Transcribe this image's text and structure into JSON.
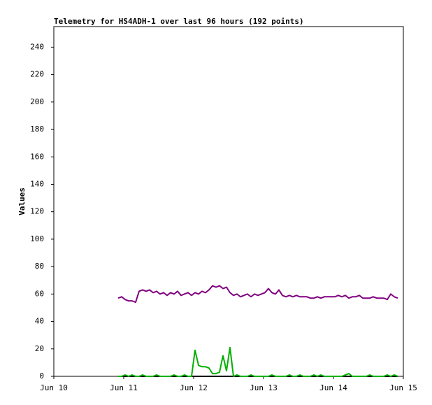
{
  "chart_data": {
    "type": "line",
    "title": "Telemetry for HS4ADH-1 over last 96 hours (192 points)",
    "y_label": "Values",
    "xlim": [
      10,
      15
    ],
    "xticks": [
      {
        "value": 10,
        "label": "Jun 10"
      },
      {
        "value": 11,
        "label": "Jun 11"
      },
      {
        "value": 12,
        "label": "Jun 12"
      },
      {
        "value": 13,
        "label": "Jun 13"
      },
      {
        "value": 14,
        "label": "Jun 14"
      },
      {
        "value": 15,
        "label": "Jun 15"
      }
    ],
    "ylim": [
      0,
      255
    ],
    "yticks": [
      0,
      20,
      40,
      60,
      80,
      100,
      120,
      140,
      160,
      180,
      200,
      220,
      240
    ],
    "x": [
      10.92,
      10.97,
      11.02,
      11.07,
      11.12,
      11.17,
      11.22,
      11.27,
      11.32,
      11.37,
      11.42,
      11.47,
      11.52,
      11.57,
      11.62,
      11.67,
      11.72,
      11.77,
      11.82,
      11.87,
      11.92,
      11.97,
      12.02,
      12.07,
      12.12,
      12.17,
      12.22,
      12.27,
      12.32,
      12.37,
      12.42,
      12.47,
      12.52,
      12.57,
      12.62,
      12.67,
      12.72,
      12.77,
      12.82,
      12.87,
      12.92,
      12.97,
      13.02,
      13.07,
      13.12,
      13.17,
      13.22,
      13.27,
      13.32,
      13.37,
      13.42,
      13.47,
      13.52,
      13.57,
      13.62,
      13.67,
      13.72,
      13.77,
      13.82,
      13.87,
      13.92,
      13.97,
      14.02,
      14.07,
      14.12,
      14.17,
      14.22,
      14.27,
      14.32,
      14.37,
      14.42,
      14.47,
      14.52,
      14.57,
      14.62,
      14.67,
      14.72,
      14.77,
      14.82,
      14.87,
      14.92
    ],
    "series": [
      {
        "color": "#000000",
        "values": [
          0,
          0,
          0,
          0,
          0,
          0,
          0,
          0,
          0,
          0,
          0,
          0,
          0,
          0,
          0,
          0,
          0,
          0,
          0,
          0,
          0,
          0,
          0,
          0,
          0,
          0,
          0,
          0,
          0,
          0,
          0,
          0,
          0,
          0,
          0,
          0,
          0,
          0,
          0,
          0,
          0,
          0,
          0,
          0,
          0,
          0,
          0,
          0,
          0,
          0,
          0,
          0,
          0,
          0,
          0,
          0,
          0,
          0,
          0,
          0,
          0,
          0,
          0,
          0,
          0,
          0,
          0,
          0,
          0,
          0,
          0,
          0,
          0,
          0,
          0,
          0,
          0,
          0,
          0,
          0,
          0
        ]
      },
      {
        "color": "#00b000",
        "values": [
          0,
          0,
          1,
          0,
          1,
          0,
          0,
          1,
          0,
          0,
          0,
          1,
          0,
          0,
          0,
          0,
          1,
          0,
          0,
          1,
          0,
          0,
          19,
          8,
          7,
          7,
          6,
          2,
          2,
          3,
          15,
          4,
          21,
          0,
          1,
          0,
          0,
          0,
          1,
          0,
          0,
          0,
          0,
          0,
          1,
          0,
          0,
          0,
          0,
          1,
          0,
          0,
          1,
          0,
          0,
          0,
          1,
          0,
          1,
          0,
          0,
          0,
          0,
          0,
          0,
          1,
          2,
          0,
          0,
          0,
          0,
          0,
          1,
          0,
          0,
          0,
          0,
          1,
          0,
          1,
          0
        ]
      },
      {
        "color": "#800080",
        "values": [
          57,
          58,
          56,
          55,
          55,
          54,
          62,
          63,
          62,
          63,
          61,
          62,
          60,
          61,
          59,
          61,
          60,
          62,
          59,
          60,
          61,
          59,
          61,
          60,
          62,
          61,
          63,
          66,
          65,
          66,
          64,
          65,
          61,
          59,
          60,
          58,
          59,
          60,
          58,
          60,
          59,
          60,
          61,
          64,
          61,
          60,
          63,
          59,
          58,
          59,
          58,
          59,
          58,
          58,
          58,
          57,
          57,
          58,
          57,
          58,
          58,
          58,
          58,
          59,
          58,
          59,
          57,
          58,
          58,
          59,
          57,
          57,
          57,
          58,
          57,
          57,
          57,
          56,
          60,
          58,
          57
        ]
      }
    ]
  }
}
